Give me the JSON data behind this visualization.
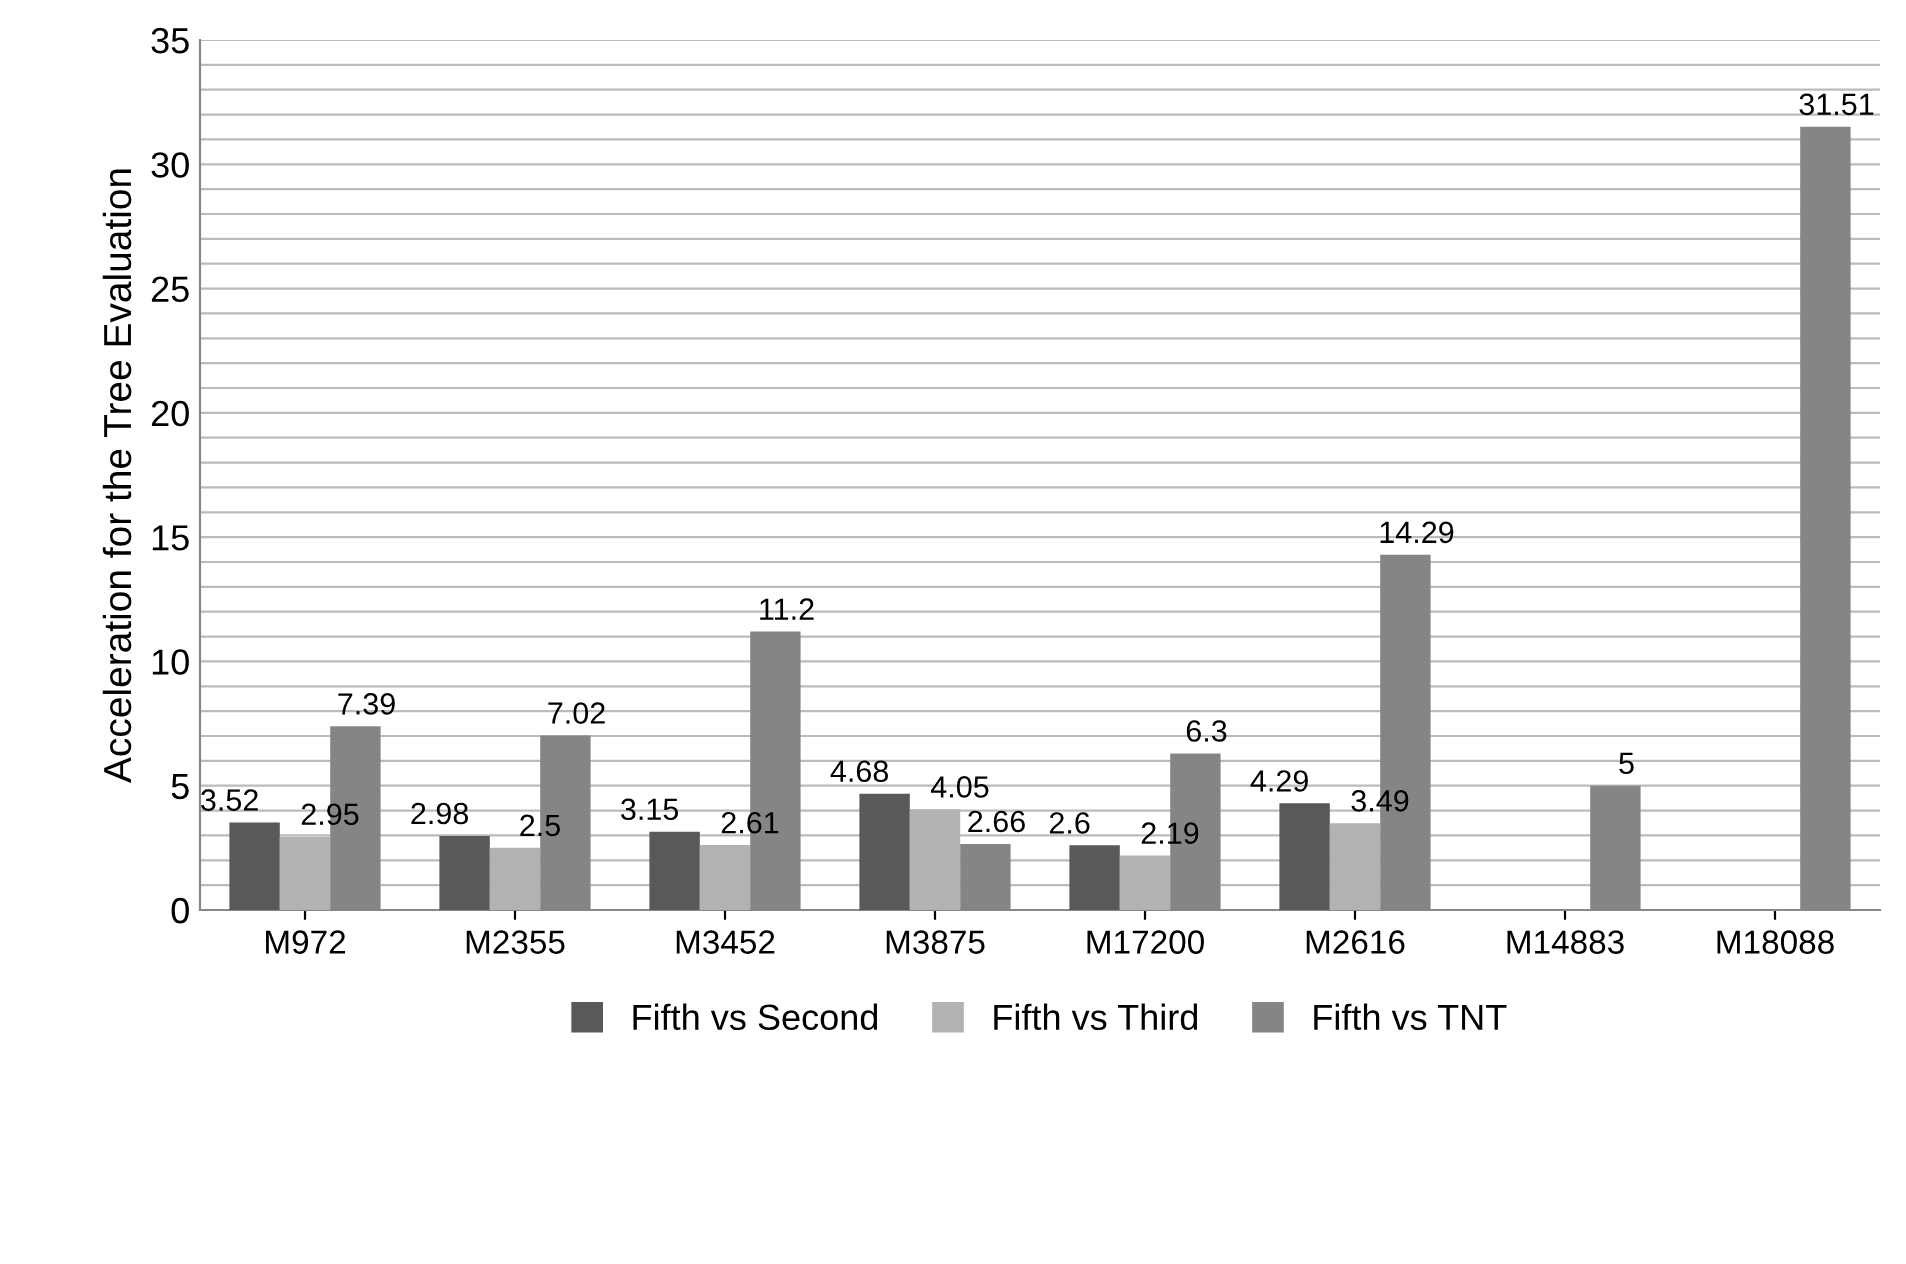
{
  "chart_data": {
    "type": "bar",
    "ylabel": "Acceleration for the Tree Evaluation",
    "categories": [
      "M972",
      "M2355",
      "M3452",
      "M3875",
      "M17200",
      "M2616",
      "M14883",
      "M18088"
    ],
    "series": [
      {
        "name": "Fifth vs Second",
        "color": "#595959",
        "values": [
          3.52,
          2.98,
          3.15,
          4.68,
          2.6,
          4.29,
          null,
          null
        ]
      },
      {
        "name": "Fifth vs Third",
        "color": "#b2b2b2",
        "values": [
          2.95,
          2.5,
          2.61,
          4.05,
          2.19,
          3.49,
          null,
          null
        ]
      },
      {
        "name": "Fifth vs TNT",
        "color": "#858585",
        "values": [
          7.39,
          7.02,
          11.2,
          2.66,
          6.3,
          14.29,
          5,
          31.51
        ]
      }
    ],
    "ylim": [
      0,
      35
    ],
    "yticks": [
      0,
      {
        "value": 1,
        "label": null
      },
      {
        "value": 2,
        "label": null
      },
      {
        "value": 3,
        "label": null
      },
      {
        "value": 4,
        "label": null
      },
      5,
      {
        "value": 6,
        "label": null
      },
      {
        "value": 7,
        "label": null
      },
      {
        "value": 8,
        "label": null
      },
      {
        "value": 9,
        "label": null
      },
      10,
      {
        "value": 11,
        "label": null
      },
      {
        "value": 12,
        "label": null
      },
      {
        "value": 13,
        "label": null
      },
      {
        "value": 14,
        "label": null
      },
      15,
      {
        "value": 16,
        "label": null
      },
      {
        "value": 17,
        "label": null
      },
      {
        "value": 18,
        "label": null
      },
      {
        "value": 19,
        "label": null
      },
      20,
      {
        "value": 21,
        "label": null
      },
      {
        "value": 22,
        "label": null
      },
      {
        "value": 23,
        "label": null
      },
      {
        "value": 24,
        "label": null
      },
      25,
      {
        "value": 26,
        "label": null
      },
      {
        "value": 27,
        "label": null
      },
      {
        "value": 28,
        "label": null
      },
      {
        "value": 29,
        "label": null
      },
      30,
      {
        "value": 31,
        "label": null
      },
      {
        "value": 32,
        "label": null
      },
      {
        "value": 33,
        "label": null
      },
      {
        "value": 34,
        "label": null
      },
      35
    ],
    "grid": "y",
    "legend": "bottom",
    "data_labels": true
  }
}
